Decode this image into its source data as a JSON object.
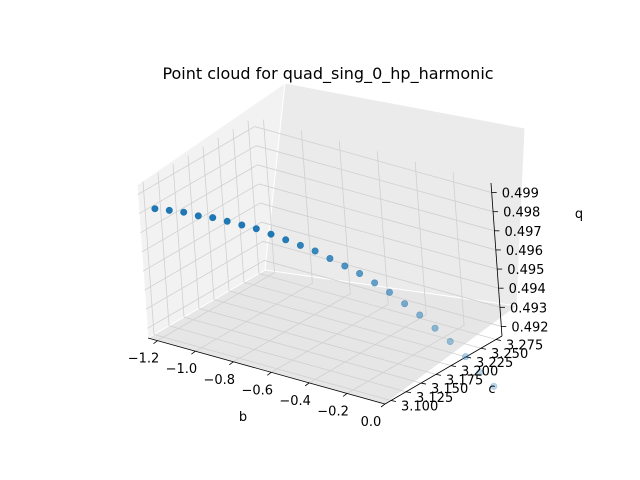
{
  "chart_data": {
    "type": "scatter",
    "title": "Point cloud for quad_sing_0_hp_harmonic",
    "xlabel": "b",
    "ylabel": "c",
    "zlabel": "q",
    "xlim": [
      -1.25,
      0.0
    ],
    "ylim": [
      3.09,
      3.285
    ],
    "zlim": [
      0.4915,
      0.4995
    ],
    "x_ticks": [
      "−1.2",
      "−1.0",
      "−0.8",
      "−0.6",
      "−0.4",
      "−0.2",
      "0.0"
    ],
    "y_ticks": [
      "3.100",
      "3.125",
      "3.150",
      "3.175",
      "3.200",
      "3.225",
      "3.250",
      "3.275"
    ],
    "z_ticks": [
      "0.492",
      "0.493",
      "0.494",
      "0.495",
      "0.496",
      "0.497",
      "0.498",
      "0.499"
    ],
    "grid": true,
    "marker_color": "#1f77b4",
    "points": {
      "x": [
        -1.2,
        -1.15,
        -1.1,
        -1.05,
        -1.0,
        -0.95,
        -0.9,
        -0.85,
        -0.8,
        -0.75,
        -0.7,
        -0.65,
        -0.6,
        -0.55,
        -0.5,
        -0.45,
        -0.4,
        -0.35,
        -0.3,
        -0.25,
        -0.2,
        -0.15,
        -0.1,
        -0.05
      ],
      "y": [
        3.101,
        3.109,
        3.117,
        3.125,
        3.133,
        3.141,
        3.149,
        3.157,
        3.165,
        3.173,
        3.181,
        3.189,
        3.197,
        3.205,
        3.213,
        3.221,
        3.229,
        3.237,
        3.245,
        3.253,
        3.261,
        3.269,
        3.275,
        3.281
      ],
      "z": [
        0.4982,
        0.4981,
        0.498,
        0.4978,
        0.4977,
        0.4975,
        0.4973,
        0.4971,
        0.4968,
        0.4965,
        0.4962,
        0.4959,
        0.4955,
        0.4951,
        0.4947,
        0.4942,
        0.4937,
        0.4931,
        0.4925,
        0.4918,
        0.4911,
        0.4903,
        0.4895,
        0.4888
      ]
    }
  }
}
